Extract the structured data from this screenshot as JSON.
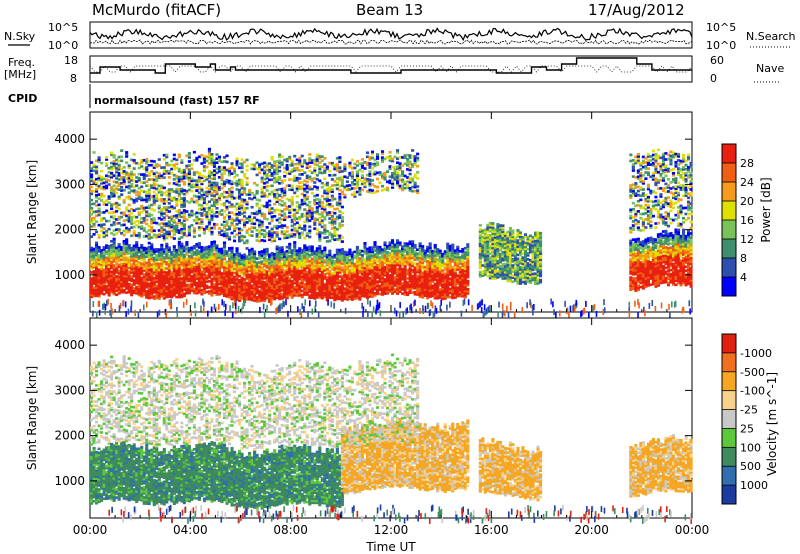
{
  "header": {
    "station": "McMurdo (fitACF)",
    "beam": "Beam 13",
    "date": "17/Aug/2012"
  },
  "top_panels": {
    "nsky_label": "N.Sky",
    "nsearch_label": "N.Search",
    "noise_ticks_left": [
      "10^5",
      "10^0"
    ],
    "noise_ticks_right": [
      "10^5",
      "10^0"
    ],
    "freq_label": "Freq.",
    "freq_unit": "[MHz]",
    "freq_ticks": [
      "18",
      "8"
    ],
    "nave_label": "Nave",
    "nave_ticks": [
      "60",
      "0"
    ],
    "cpid_label": "CPID",
    "cpid_text": "normalsound (fast) 157 RF"
  },
  "chart_data": [
    {
      "type": "heatmap",
      "panel": "power",
      "xlabel": "",
      "ylabel": "Slant Range [km]",
      "x_ticks": [
        "00:00",
        "04:00",
        "08:00",
        "12:00",
        "16:00",
        "20:00",
        "00:00"
      ],
      "xlim_hours": [
        0,
        24
      ],
      "y_ticks": [
        1000,
        2000,
        3000,
        4000
      ],
      "ylim_km": [
        180,
        4600
      ],
      "colorbar_label": "Power [dB]",
      "colorbar_ticks": [
        "4",
        "8",
        "12",
        "16",
        "20",
        "24",
        "28"
      ],
      "colorbar_colors": [
        "#0000ff",
        "#2f4fb0",
        "#3f8f6f",
        "#79c25a",
        "#e0e000",
        "#f59a1a",
        "#f06014",
        "#e82010"
      ],
      "echo_regions": [
        {
          "t0": 0.0,
          "t1": 15.0,
          "r0": 500,
          "r1": 1600,
          "level": "high"
        },
        {
          "t0": 0.0,
          "t1": 10.0,
          "r0": 1800,
          "r1": 2800,
          "level": "low"
        },
        {
          "t0": 0.0,
          "t1": 13.0,
          "r0": 2800,
          "r1": 3600,
          "level": "low"
        },
        {
          "t0": 15.5,
          "t1": 18.0,
          "r0": 900,
          "r1": 2000,
          "level": "mid"
        },
        {
          "t0": 21.5,
          "t1": 24.0,
          "r0": 700,
          "r1": 1800,
          "level": "high"
        },
        {
          "t0": 21.5,
          "t1": 24.0,
          "r0": 2000,
          "r1": 3600,
          "level": "low"
        }
      ]
    },
    {
      "type": "heatmap",
      "panel": "velocity",
      "xlabel": "Time UT",
      "ylabel": "Slant Range [km]",
      "x_ticks": [
        "00:00",
        "04:00",
        "08:00",
        "12:00",
        "16:00",
        "20:00",
        "00:00"
      ],
      "xlim_hours": [
        0,
        24
      ],
      "y_ticks": [
        1000,
        2000,
        3000,
        4000
      ],
      "ylim_km": [
        180,
        4600
      ],
      "colorbar_label": "Velocity [m s^-1]",
      "colorbar_ticks": [
        "1000",
        "500",
        "100",
        "25",
        "-25",
        "-100",
        "-500",
        "-1000"
      ],
      "colorbar_colors": [
        "#1a3ca0",
        "#2f6fb0",
        "#3f8a5f",
        "#5cc93c",
        "#c8c8c8",
        "#f7d08a",
        "#f5a623",
        "#f07020",
        "#e02010"
      ],
      "echo_regions": [
        {
          "t0": 0.0,
          "t1": 10.0,
          "r0": 500,
          "r1": 1700,
          "sign": "positive"
        },
        {
          "t0": 10.0,
          "t1": 15.0,
          "r0": 800,
          "r1": 2200,
          "sign": "negative"
        },
        {
          "t0": 15.5,
          "t1": 18.0,
          "r0": 700,
          "r1": 1800,
          "sign": "negative"
        },
        {
          "t0": 21.5,
          "t1": 24.0,
          "r0": 700,
          "r1": 1800,
          "sign": "negative"
        },
        {
          "t0": 0.0,
          "t1": 13.0,
          "r0": 1800,
          "r1": 3600,
          "sign": "ground"
        }
      ]
    }
  ]
}
